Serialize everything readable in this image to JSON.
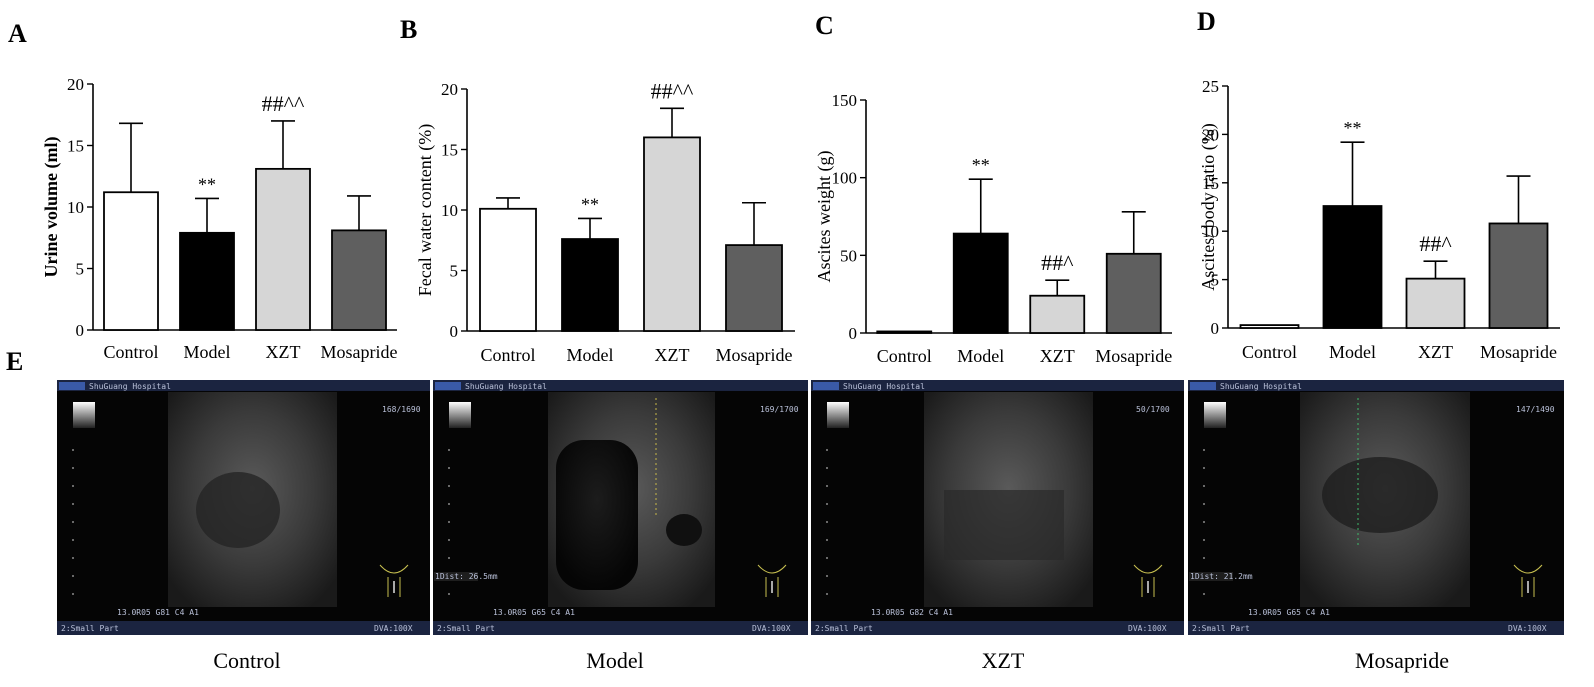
{
  "colors": {
    "Control": "#ffffff",
    "Model": "#000000",
    "XZT": "#d6d6d6",
    "Mosapride": "#5f5f5f"
  },
  "chart_data": [
    {
      "panel": "A",
      "type": "bar",
      "categories": [
        "Control",
        "Model",
        "XZT",
        "Mosapride"
      ],
      "values": [
        11.2,
        7.9,
        13.1,
        8.1
      ],
      "errors": [
        5.6,
        2.8,
        3.9,
        2.8
      ],
      "annotations": [
        "",
        "**",
        "##^^",
        ""
      ],
      "xlabel": "",
      "ylabel": "Urine volume (ml)",
      "ylim": [
        0,
        20
      ],
      "yticks": [
        0,
        5,
        10,
        15,
        20
      ]
    },
    {
      "panel": "B",
      "type": "bar",
      "categories": [
        "Control",
        "Model",
        "XZT",
        "Mosapride"
      ],
      "values": [
        10.1,
        7.6,
        16.0,
        7.1
      ],
      "errors": [
        0.9,
        1.7,
        2.4,
        3.5
      ],
      "annotations": [
        "",
        "**",
        "##^^",
        ""
      ],
      "xlabel": "",
      "ylabel": "Fecal water content (%)",
      "ylim": [
        0,
        20
      ],
      "yticks": [
        0,
        5,
        10,
        15,
        20
      ]
    },
    {
      "panel": "C",
      "type": "bar",
      "categories": [
        "Control",
        "Model",
        "XZT",
        "Mosapride"
      ],
      "values": [
        1,
        64,
        24,
        51
      ],
      "errors": [
        0.5,
        35,
        10,
        27
      ],
      "annotations": [
        "",
        "**",
        "##^",
        ""
      ],
      "xlabel": "",
      "ylabel": "Ascites weight (g)",
      "ylim": [
        0,
        150
      ],
      "yticks": [
        0,
        50,
        100,
        150
      ]
    },
    {
      "panel": "D",
      "type": "bar",
      "categories": [
        "Control",
        "Model",
        "XZT",
        "Mosapride"
      ],
      "values": [
        0.3,
        12.6,
        5.1,
        10.8
      ],
      "errors": [
        0.05,
        6.6,
        1.8,
        4.9
      ],
      "annotations": [
        "",
        "**",
        "##^",
        ""
      ],
      "xlabel": "",
      "ylabel": "Ascites/ body ratio (%)",
      "ylim": [
        0,
        25
      ],
      "yticks": [
        0,
        5,
        10,
        15,
        20,
        25
      ]
    }
  ],
  "ultrasound": {
    "panel": "E",
    "images": [
      {
        "label": "Control",
        "header": "ShuGuang Hospital",
        "counter": "168/1690",
        "footer_left": "2:Small Part",
        "footer_right": "DVA:100X",
        "probe_line": "13.0R05 G81 C4 A1",
        "measure": ""
      },
      {
        "label": "Model",
        "header": "ShuGuang Hospital",
        "counter": "169/1700",
        "footer_left": "2:Small Part",
        "footer_right": "DVA:100X",
        "probe_line": "13.0R05 G65 C4 A1",
        "measure": "1Dist: 26.5mm"
      },
      {
        "label": "XZT",
        "header": "ShuGuang Hospital",
        "counter": "50/1700",
        "footer_left": "2:Small Part",
        "footer_right": "DVA:100X",
        "probe_line": "13.0R05 G82 C4 A1",
        "measure": ""
      },
      {
        "label": "Mosapride",
        "header": "ShuGuang Hospital",
        "counter": "147/1490",
        "footer_left": "2:Small Part",
        "footer_right": "DVA:100X",
        "probe_line": "13.0R05 G65 C4 A1",
        "measure": "1Dist: 21.2mm"
      }
    ]
  }
}
